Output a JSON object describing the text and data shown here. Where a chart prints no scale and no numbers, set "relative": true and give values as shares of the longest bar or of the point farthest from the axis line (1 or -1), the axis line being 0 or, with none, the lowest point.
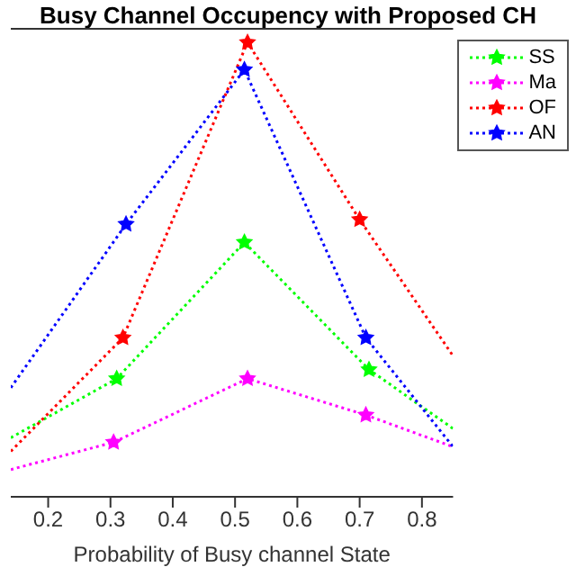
{
  "chart_data": {
    "type": "line",
    "title": "Busy Channel Occupency with Proposed CH",
    "xlabel": "Probability of Busy channel State",
    "relative": true,
    "xlim": [
      0.14,
      0.85
    ],
    "xticks": [
      0.2,
      0.3,
      0.4,
      0.5,
      0.6,
      0.7,
      0.8
    ],
    "marker": "star",
    "line_style": "dotted",
    "grid": false,
    "legend": "top right",
    "series": [
      {
        "name": "SS",
        "color": "#00ff00",
        "x": [
          0.14,
          0.31,
          0.515,
          0.715,
          0.85
        ],
        "values": [
          0.13,
          0.26,
          0.56,
          0.28,
          0.15
        ]
      },
      {
        "name": "Ma",
        "color": "#ff00ff",
        "x": [
          0.14,
          0.305,
          0.52,
          0.71,
          0.85
        ],
        "values": [
          0.06,
          0.12,
          0.26,
          0.18,
          0.11
        ]
      },
      {
        "name": "OF",
        "color": "#ff0000",
        "x": [
          0.14,
          0.32,
          0.52,
          0.7,
          0.85
        ],
        "values": [
          0.1,
          0.35,
          1,
          0.61,
          0.31
        ]
      },
      {
        "name": "AN",
        "color": "#0000ff",
        "x": [
          0.14,
          0.325,
          0.515,
          0.71,
          0.85
        ],
        "values": [
          0.24,
          0.6,
          0.94,
          0.35,
          0.11
        ]
      }
    ]
  }
}
